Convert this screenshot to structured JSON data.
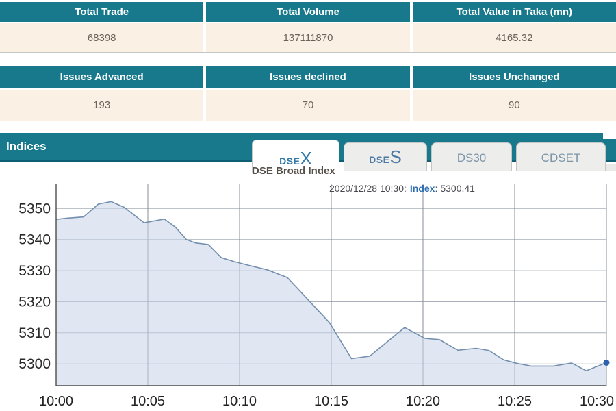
{
  "colors": {
    "teal": "#17798b",
    "teal_dark": "#0e5f73",
    "cream": "#faf0e3",
    "cell_text": "#6b635a",
    "line": "#748fae",
    "dot": "#2d61ae",
    "tab_active_text": "#2f78a9",
    "tab_inactive_text": "#7d95a8",
    "title_text": "#56504a",
    "annotation_text": "#47474f",
    "annotation_blue": "#2b6cb0"
  },
  "summary": {
    "trade": {
      "headers": [
        "Total Trade",
        "Total Volume",
        "Total Value in Taka (mn)"
      ],
      "values": [
        "68398",
        "137111870",
        "4165.32"
      ]
    },
    "issues": {
      "headers": [
        "Issues Advanced",
        "Issues declined",
        "Issues Unchanged"
      ],
      "values": [
        "193",
        "70",
        "90"
      ]
    }
  },
  "indices": {
    "title": "Indices",
    "tabs": [
      {
        "small": "DSE",
        "big": "X",
        "active": true
      },
      {
        "small": "DSE",
        "big": "S",
        "active": false
      },
      {
        "label": "DS30",
        "active": false
      },
      {
        "label": "CDSET",
        "active": false
      }
    ]
  },
  "chart": {
    "annotation": {
      "datetime": "2020/12/28 10:30:",
      "series": "Index",
      "separator": ":",
      "value": "5300.41"
    }
  },
  "chart_data": {
    "type": "area",
    "title": "DSE Broad Index",
    "series_name": "Index",
    "x_axis": {
      "labels": [
        "10:00",
        "10:05",
        "10:10",
        "10:15",
        "10:20",
        "10:25",
        "10:30"
      ],
      "minutes": [
        0,
        5,
        10,
        15,
        20,
        25,
        30
      ]
    },
    "y_axis": {
      "ticks": [
        5300,
        5310,
        5320,
        5330,
        5340,
        5350
      ]
    },
    "xlim": [
      0,
      30
    ],
    "ylim": [
      5293,
      5358
    ],
    "grid": true,
    "points": [
      [
        0,
        5346.5
      ],
      [
        0.6,
        5346.9
      ],
      [
        1.5,
        5347.3
      ],
      [
        2.3,
        5351.4
      ],
      [
        3.0,
        5352.2
      ],
      [
        3.7,
        5350.4
      ],
      [
        4.8,
        5345.4
      ],
      [
        5.9,
        5346.6
      ],
      [
        6.5,
        5344.0
      ],
      [
        7.1,
        5340.0
      ],
      [
        7.6,
        5338.9
      ],
      [
        8.3,
        5338.4
      ],
      [
        9.0,
        5334.2
      ],
      [
        9.7,
        5332.9
      ],
      [
        10.5,
        5331.7
      ],
      [
        11.5,
        5330.3
      ],
      [
        12.6,
        5327.8
      ],
      [
        14.9,
        5313.3
      ],
      [
        16.1,
        5301.7
      ],
      [
        17.1,
        5302.5
      ],
      [
        19.0,
        5311.7
      ],
      [
        20.1,
        5308.2
      ],
      [
        20.9,
        5307.8
      ],
      [
        21.9,
        5304.4
      ],
      [
        22.9,
        5305.0
      ],
      [
        23.6,
        5304.3
      ],
      [
        24.4,
        5301.3
      ],
      [
        25.1,
        5300.2
      ],
      [
        25.9,
        5299.3
      ],
      [
        27.1,
        5299.3
      ],
      [
        28.1,
        5300.3
      ],
      [
        28.9,
        5297.8
      ],
      [
        30,
        5300.41
      ]
    ],
    "last_point": {
      "time": "10:30",
      "value": 5300.41
    }
  }
}
